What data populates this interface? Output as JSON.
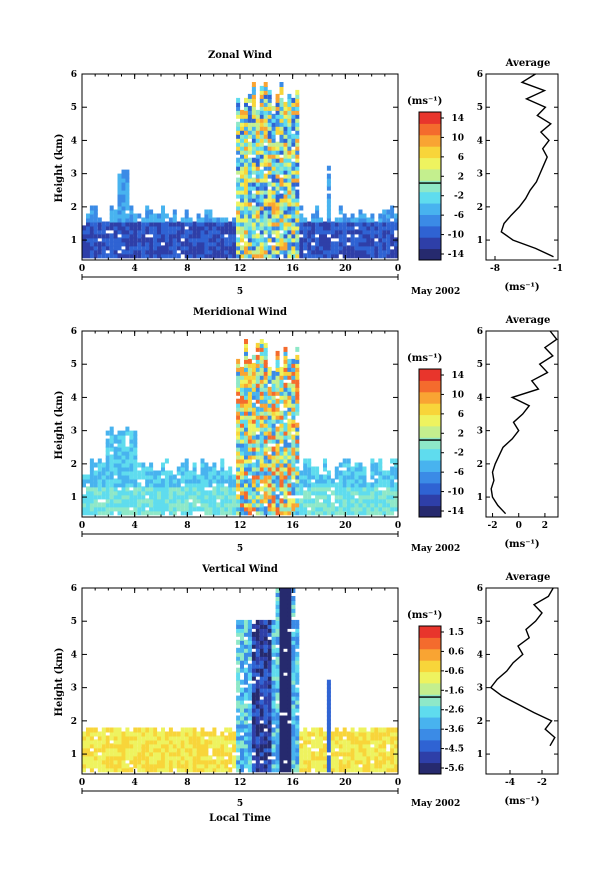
{
  "figure": {
    "date_label": "May 2002",
    "day_marker": "5",
    "x_axis_label": "Local Time",
    "y_axis_label": "Height (km)",
    "colorbar_unit": "(ms⁻¹)",
    "profile_title": "Average",
    "profile_xlabel": "(ms⁻¹)"
  },
  "chart_data": [
    {
      "type": "heatmap",
      "title": "Zonal Wind",
      "xlabel": "",
      "ylabel": "Height (km)",
      "xlim": [
        0,
        24
      ],
      "ylim": [
        0.4,
        6
      ],
      "x_ticks": [
        "0",
        "4",
        "8",
        "12",
        "16",
        "20",
        "0"
      ],
      "y_ticks": [
        "1",
        "2",
        "3",
        "4",
        "5",
        "6"
      ],
      "colorbar": {
        "unit": "(ms⁻¹)",
        "range": [
          -16,
          16
        ],
        "ticks": [
          "14",
          "10",
          "6",
          "2",
          "-2",
          "-6",
          "-10",
          "-14"
        ]
      },
      "colors": [
        "#262a6e",
        "#2e3fa8",
        "#2f63d3",
        "#3b8be6",
        "#48b3ef",
        "#5fdcee",
        "#8ee8c8",
        "#c4ef8e",
        "#eef35f",
        "#f8d53a",
        "#f9a433",
        "#f46b2d",
        "#e8352c"
      ],
      "profile": {
        "title": "Average",
        "xlabel": "(ms⁻¹)",
        "x_ticks": [
          "-8",
          "-1"
        ],
        "xlim": [
          -9,
          -1
        ],
        "heights": [
          0.5,
          0.75,
          1.0,
          1.25,
          1.5,
          1.75,
          2.0,
          2.25,
          2.5,
          2.75,
          3.0,
          3.25,
          3.5,
          3.75,
          4.0,
          4.25,
          4.5,
          4.75,
          5.0,
          5.25,
          5.5,
          5.75,
          6.0
        ],
        "values": [
          -1.5,
          -3.5,
          -6.0,
          -7.3,
          -7.0,
          -6.2,
          -5.3,
          -4.6,
          -4.1,
          -3.4,
          -3.0,
          -2.6,
          -2.2,
          -2.7,
          -2.0,
          -2.9,
          -1.8,
          -3.3,
          -2.4,
          -4.5,
          -2.5,
          -5.0,
          -3.5
        ]
      }
    },
    {
      "type": "heatmap",
      "title": "Meridional Wind",
      "xlabel": "",
      "ylabel": "Height (km)",
      "xlim": [
        0,
        24
      ],
      "ylim": [
        0.4,
        6
      ],
      "x_ticks": [
        "0",
        "4",
        "8",
        "12",
        "16",
        "20",
        "0"
      ],
      "y_ticks": [
        "1",
        "2",
        "3",
        "4",
        "5",
        "6"
      ],
      "colorbar": {
        "unit": "(ms⁻¹)",
        "range": [
          -16,
          16
        ],
        "ticks": [
          "14",
          "10",
          "6",
          "2",
          "-2",
          "-6",
          "-10",
          "-14"
        ]
      },
      "colors": [
        "#262a6e",
        "#2e3fa8",
        "#2f63d3",
        "#3b8be6",
        "#48b3ef",
        "#5fdcee",
        "#8ee8c8",
        "#c4ef8e",
        "#eef35f",
        "#f8d53a",
        "#f9a433",
        "#f46b2d",
        "#e8352c"
      ],
      "profile": {
        "title": "Average",
        "xlabel": "(ms⁻¹)",
        "x_ticks": [
          "-2",
          "0",
          "2"
        ],
        "xlim": [
          -2.5,
          3
        ],
        "heights": [
          0.5,
          0.75,
          1.0,
          1.25,
          1.5,
          1.75,
          2.0,
          2.25,
          2.5,
          2.75,
          3.0,
          3.25,
          3.5,
          3.75,
          4.0,
          4.25,
          4.5,
          4.75,
          5.0,
          5.25,
          5.5,
          5.75,
          6.0
        ],
        "values": [
          -1.0,
          -1.6,
          -2.0,
          -2.1,
          -1.9,
          -2.0,
          -1.8,
          -1.5,
          -1.2,
          -0.5,
          0.0,
          -0.4,
          0.3,
          0.8,
          -0.5,
          1.5,
          1.0,
          2.2,
          1.6,
          2.6,
          2.0,
          2.9,
          2.4
        ]
      }
    },
    {
      "type": "heatmap",
      "title": "Vertical Wind",
      "xlabel": "Local Time",
      "ylabel": "Height (km)",
      "xlim": [
        0,
        24
      ],
      "ylim": [
        0.4,
        6
      ],
      "x_ticks": [
        "0",
        "4",
        "8",
        "12",
        "16",
        "20",
        "0"
      ],
      "y_ticks": [
        "1",
        "2",
        "3",
        "4",
        "5",
        "6"
      ],
      "colorbar": {
        "unit": "(ms⁻¹)",
        "range": [
          -6,
          2
        ],
        "ticks": [
          "1.5",
          "0.6",
          "-0.6",
          "-1.6",
          "-2.6",
          "-3.6",
          "-4.5",
          "-5.6"
        ]
      },
      "colors": [
        "#262a6e",
        "#2e3fa8",
        "#2f63d3",
        "#3b8be6",
        "#48b3ef",
        "#5fdcee",
        "#8ee8c8",
        "#c4ef8e",
        "#eef35f",
        "#f8d53a",
        "#f9a433",
        "#f46b2d",
        "#e8352c"
      ],
      "profile": {
        "title": "Average",
        "xlabel": "(ms⁻¹)",
        "x_ticks": [
          "-4",
          "-2"
        ],
        "xlim": [
          -5.5,
          -1
        ],
        "heights": [
          1.25,
          1.5,
          1.75,
          2.0,
          2.25,
          2.5,
          2.75,
          3.0,
          3.25,
          3.5,
          3.75,
          4.0,
          4.25,
          4.5,
          4.75,
          5.0,
          5.25,
          5.5,
          5.75,
          6.0
        ],
        "values": [
          -1.5,
          -1.2,
          -1.8,
          -1.4,
          -2.5,
          -3.5,
          -4.5,
          -5.2,
          -4.8,
          -4.2,
          -3.8,
          -3.2,
          -3.5,
          -2.8,
          -3.0,
          -2.4,
          -2.0,
          -2.5,
          -1.6,
          -1.3
        ]
      }
    }
  ]
}
